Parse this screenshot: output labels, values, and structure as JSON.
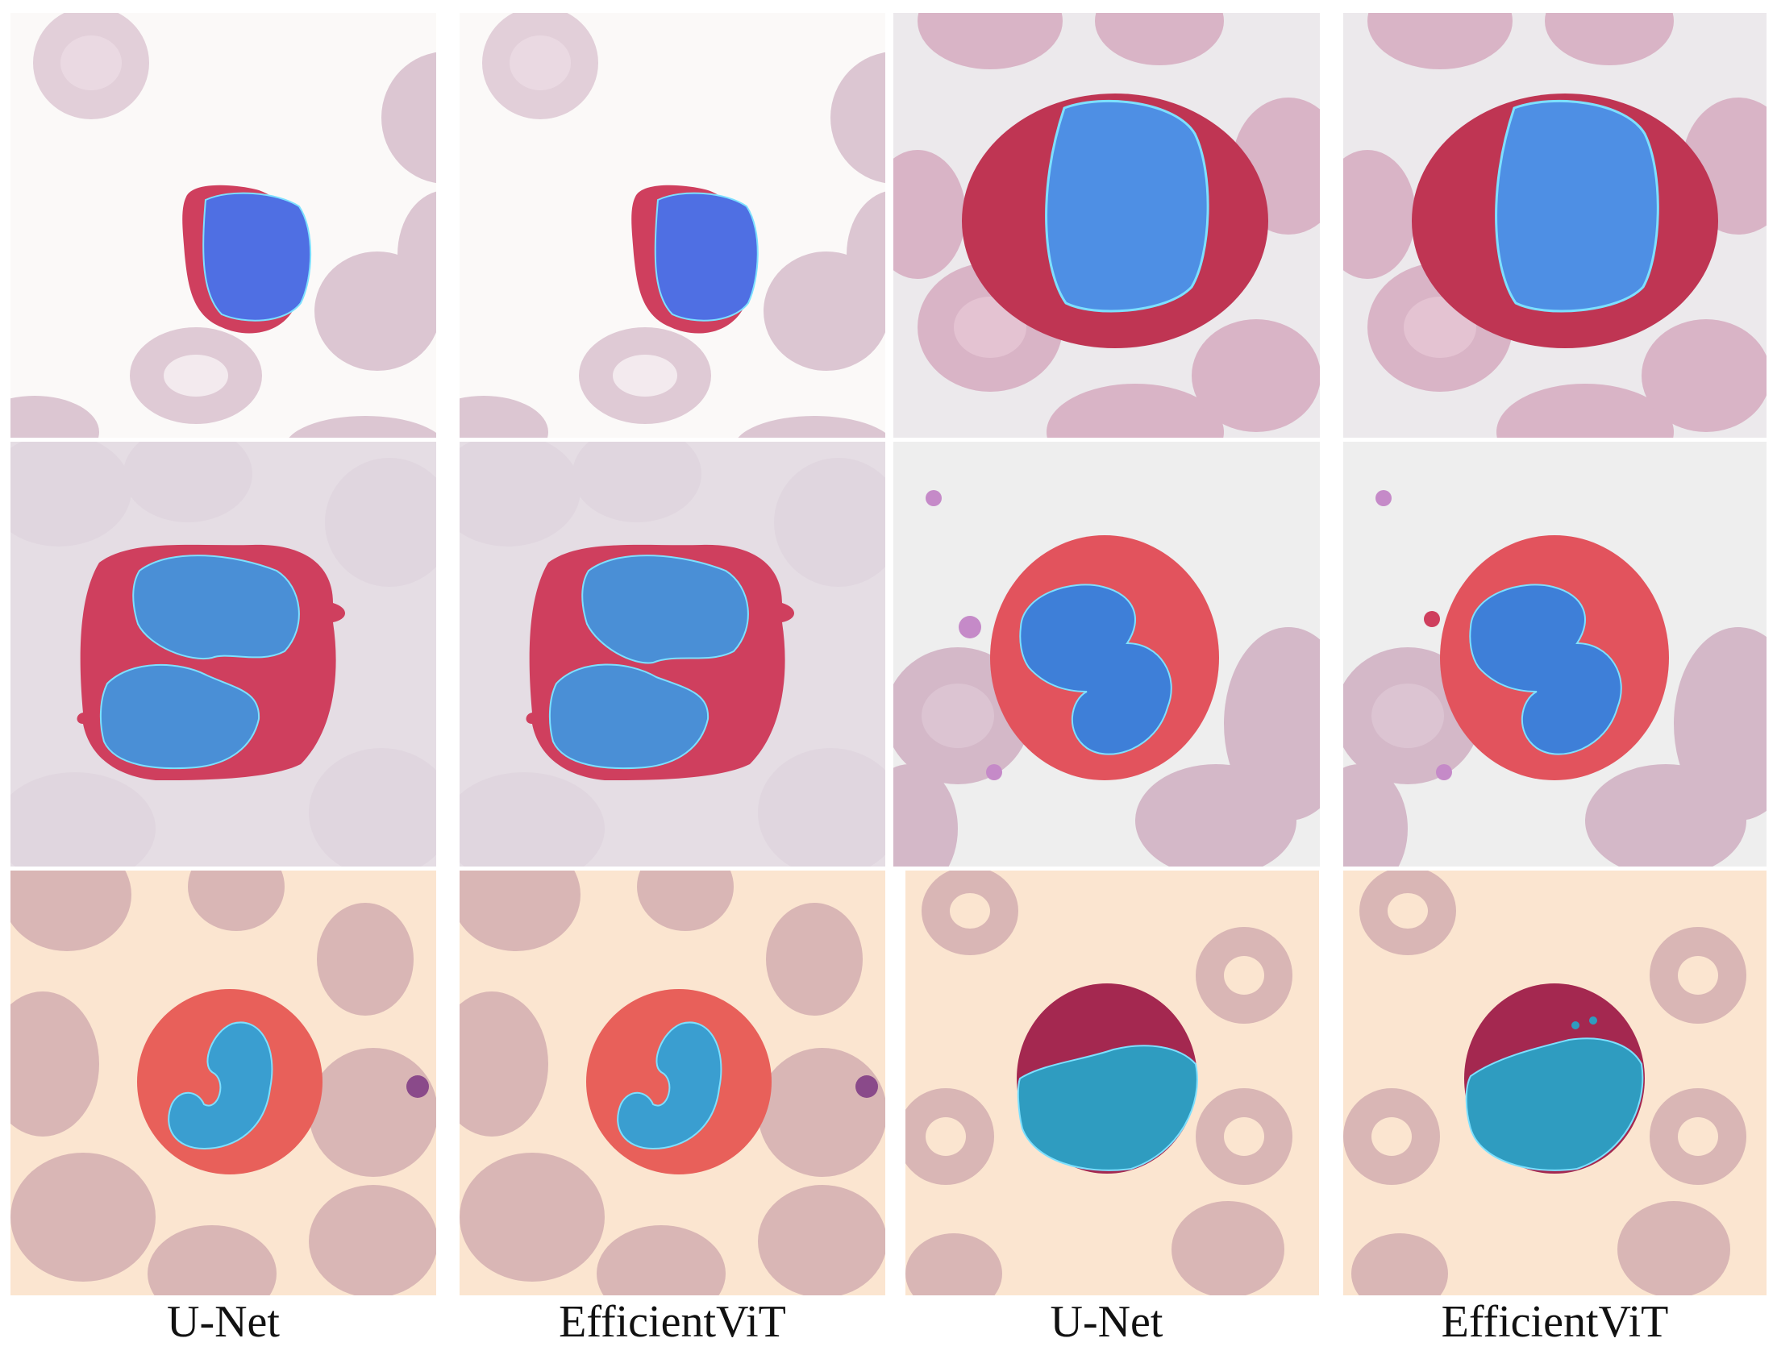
{
  "captions": [
    "U-Net",
    "EfficientViT",
    "U-Net",
    "EfficientViT"
  ],
  "colors": {
    "bg_white": "#fbf9f8",
    "bg_grey": "#ece9ec",
    "bg_pale_purple": "#e5dde4",
    "bg_peach": "#fbe5d0",
    "rbc_light": "#dcc6d2",
    "rbc_pink": "#d9b4c6",
    "rbc_tan": "#d9b6b5",
    "cytoplasm_red": "#cf3f5e",
    "cytoplasm_crimson": "#c2394d",
    "cytoplasm_orange": "#e8605a",
    "cytoplasm_dark": "#a42850",
    "nucleus_blue": "#4f7fe6",
    "nucleus_cyan": "#3aa9d6",
    "nucleus_teal": "#2f9cc0",
    "mask_edge": "#7de0ff"
  },
  "icons": [
    "white-blood-cell",
    "red-blood-cell",
    "segmentation-mask"
  ]
}
